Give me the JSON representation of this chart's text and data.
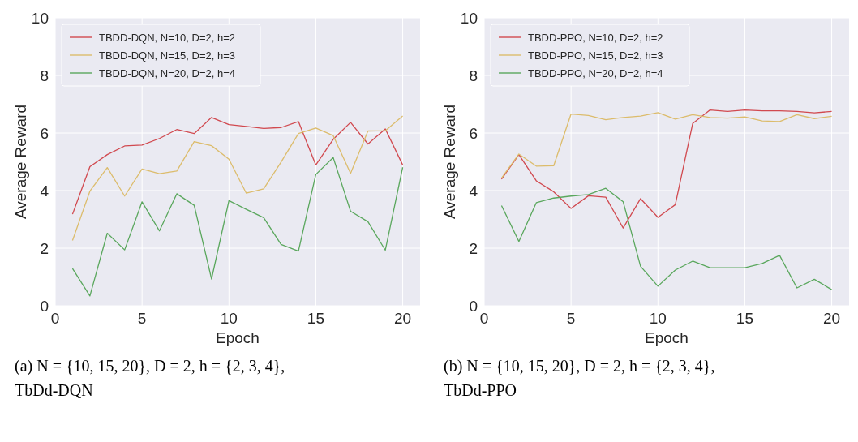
{
  "chart_data": [
    {
      "type": "line",
      "xlabel": "Epoch",
      "ylabel": "Average Reward",
      "xlim": [
        0,
        21
      ],
      "xticks": [
        0,
        5,
        10,
        15,
        20
      ],
      "ylim": [
        0,
        10
      ],
      "yticks": [
        0,
        2,
        4,
        6,
        8,
        10
      ],
      "grid": true,
      "legend": "top left",
      "x": [
        1,
        2,
        3,
        4,
        5,
        6,
        7,
        8,
        9,
        10,
        11,
        12,
        13,
        14,
        15,
        16,
        17,
        18,
        19,
        20
      ],
      "annotations": [
        "(a) N = {10, 15, 20}, D = 2, h = {2, 3, 4}, TbDd-DQN"
      ],
      "series": [
        {
          "name": "TBDD-DQN, N=10, D=2, h=2",
          "color": "#d1494f",
          "values": [
            3.18,
            4.83,
            5.25,
            5.55,
            5.58,
            5.81,
            6.12,
            5.98,
            6.54,
            6.29,
            6.23,
            6.16,
            6.19,
            6.4,
            4.89,
            5.78,
            6.37,
            5.62,
            6.14,
            4.89
          ]
        },
        {
          "name": "TBDD-DQN, N=15, D=2, h=3",
          "color": "#dcbc6c",
          "values": [
            2.27,
            3.98,
            4.8,
            3.81,
            4.75,
            4.59,
            4.68,
            5.7,
            5.56,
            5.09,
            3.91,
            4.06,
            4.99,
            5.98,
            6.17,
            5.91,
            4.6,
            6.07,
            6.08,
            6.59
          ]
        },
        {
          "name": "TBDD-DQN, N=20, D=2, h=4",
          "color": "#5aa75d",
          "values": [
            1.29,
            0.34,
            2.52,
            1.94,
            3.61,
            2.6,
            3.89,
            3.49,
            0.93,
            3.65,
            3.35,
            3.06,
            2.13,
            1.9,
            4.56,
            5.15,
            3.28,
            2.92,
            1.93,
            4.81
          ]
        }
      ]
    },
    {
      "type": "line",
      "xlabel": "Epoch",
      "ylabel": "Average Reward",
      "xlim": [
        0,
        21
      ],
      "xticks": [
        0,
        5,
        10,
        15,
        20
      ],
      "ylim": [
        0,
        10
      ],
      "yticks": [
        0,
        2,
        4,
        6,
        8,
        10
      ],
      "grid": true,
      "legend": "top left",
      "x": [
        1,
        2,
        3,
        4,
        5,
        6,
        7,
        8,
        9,
        10,
        11,
        12,
        13,
        14,
        15,
        16,
        17,
        18,
        19,
        20
      ],
      "annotations": [
        "(b) N = {10, 15, 20}, D = 2, h = {2, 3, 4}, TbDd-PPO"
      ],
      "series": [
        {
          "name": "TBDD-PPO, N=10, D=2, h=2",
          "color": "#d1494f",
          "values": [
            4.4,
            5.25,
            4.34,
            3.96,
            3.38,
            3.82,
            3.77,
            2.7,
            3.72,
            3.07,
            3.51,
            6.33,
            6.8,
            6.75,
            6.8,
            6.77,
            6.77,
            6.75,
            6.7,
            6.75
          ]
        },
        {
          "name": "TBDD-PPO, N=15, D=2, h=3",
          "color": "#dcbc6c",
          "values": [
            4.43,
            5.27,
            4.85,
            4.86,
            6.66,
            6.61,
            6.46,
            6.54,
            6.59,
            6.71,
            6.48,
            6.64,
            6.54,
            6.52,
            6.56,
            6.42,
            6.4,
            6.64,
            6.5,
            6.58
          ]
        },
        {
          "name": "TBDD-PPO, N=20, D=2, h=4",
          "color": "#5aa75d",
          "values": [
            3.48,
            2.23,
            3.58,
            3.74,
            3.81,
            3.86,
            4.08,
            3.61,
            1.37,
            0.68,
            1.24,
            1.55,
            1.32,
            1.32,
            1.32,
            1.47,
            1.75,
            0.62,
            0.92,
            0.56
          ]
        }
      ]
    }
  ]
}
